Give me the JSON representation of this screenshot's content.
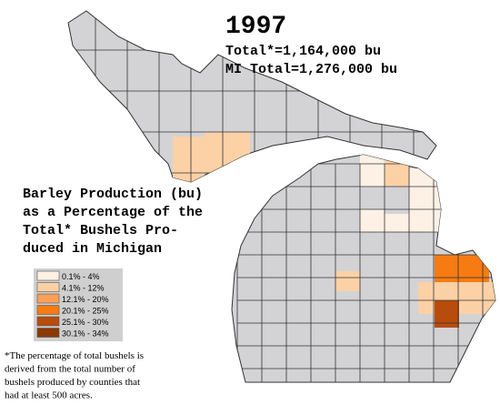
{
  "header": {
    "year": "1997",
    "total": "Total*=1,164,000 bu",
    "mi_total": "MI Total=1,276,000 bu"
  },
  "heading": {
    "lines": [
      "Barley Production (bu)",
      "as a Percentage of the",
      "Total* Bushels Pro-",
      "duced in Michigan"
    ]
  },
  "legend": {
    "items": [
      {
        "label": "0.1% - 4%",
        "color": "#fdf1e6"
      },
      {
        "label": "4.1% - 12%",
        "color": "#fcd1a6"
      },
      {
        "label": "12.1% - 20%",
        "color": "#fba05a"
      },
      {
        "label": "20.1% - 25%",
        "color": "#f57b12"
      },
      {
        "label": "25.1% - 30%",
        "color": "#b84c0c"
      },
      {
        "label": "30.1% - 34%",
        "color": "#8a3a02"
      }
    ]
  },
  "footnote": {
    "lines": [
      "*The percentage of total bushels is",
      "derived from the total number of",
      "bushels produced by counties that",
      "had at least 500 acres."
    ]
  }
}
